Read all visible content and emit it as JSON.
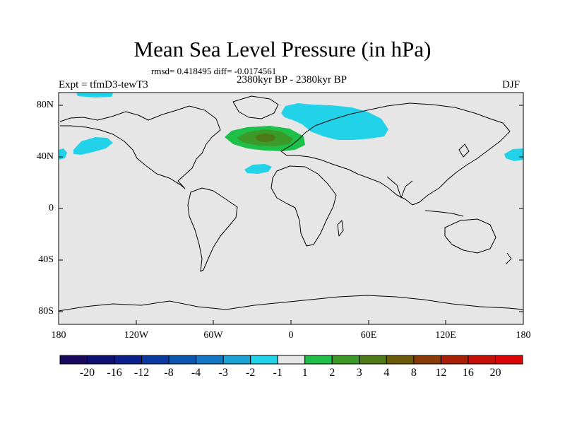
{
  "title": "Mean Sea Level Pressure (in hPa)",
  "stats": "rmsd= 0.418495 diff= -0.0174561",
  "period": "2380kyr BP - 2380kyr BP",
  "experiment": "Expt = tfmD3-tewT3",
  "season": "DJF",
  "lat_ticks": [
    "80N",
    "40N",
    "0",
    "40S",
    "80S"
  ],
  "lon_ticks": [
    "180",
    "120W",
    "60W",
    "0",
    "60E",
    "120E",
    "180"
  ],
  "colorbar": {
    "labels": [
      "-20",
      "-16",
      "-12",
      "-8",
      "-4",
      "-3",
      "-2",
      "-1",
      "1",
      "2",
      "3",
      "4",
      "8",
      "12",
      "16",
      "20"
    ],
    "colors": [
      "#1a0a5e",
      "#0d0f72",
      "#0a1e8c",
      "#0a3aa0",
      "#0a56b0",
      "#1478c4",
      "#1aa4d6",
      "#22d2e8",
      "#e6e6e6",
      "#1ec04a",
      "#3c9a28",
      "#4f7a1a",
      "#6a5a0a",
      "#8a3a06",
      "#a81e06",
      "#c40e06",
      "#dc0404"
    ]
  },
  "colors": {
    "ocean": "#e6e6e6",
    "cyan_anomaly": "#22d2e8",
    "green_light": "#1ec04a",
    "green_mid": "#3c9a28",
    "green_dark": "#4f7a1a"
  }
}
